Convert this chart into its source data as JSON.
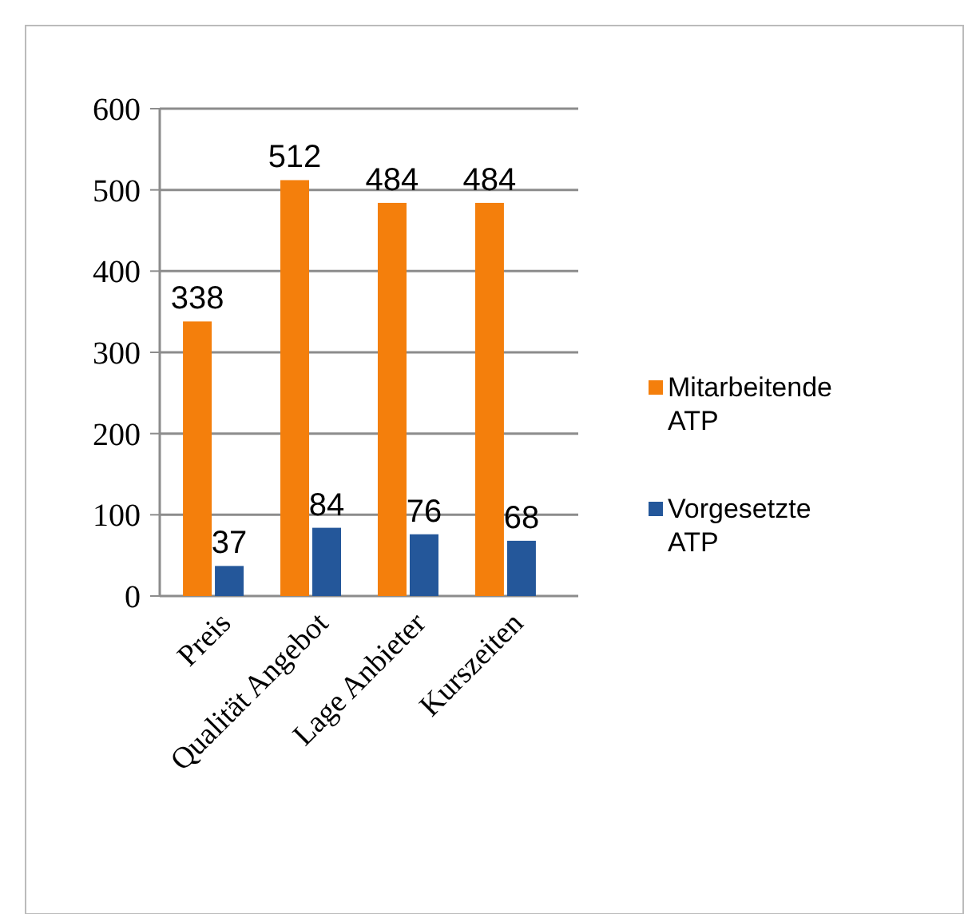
{
  "chart_data": {
    "type": "bar",
    "categories": [
      "Preis",
      "Qualität Angebot",
      "Lage Anbieter",
      "Kurszeiten"
    ],
    "series": [
      {
        "name": "Mitarbeitende ATP",
        "color": "#f47f0c",
        "values": [
          338,
          512,
          484,
          484
        ]
      },
      {
        "name": "Vorgesetzte ATP",
        "color": "#24579a",
        "values": [
          37,
          84,
          76,
          68
        ]
      }
    ],
    "ylim": [
      0,
      600
    ],
    "yticks": [
      0,
      100,
      200,
      300,
      400,
      500,
      600
    ],
    "grid": "y",
    "legend": "right",
    "data_labels": true
  }
}
